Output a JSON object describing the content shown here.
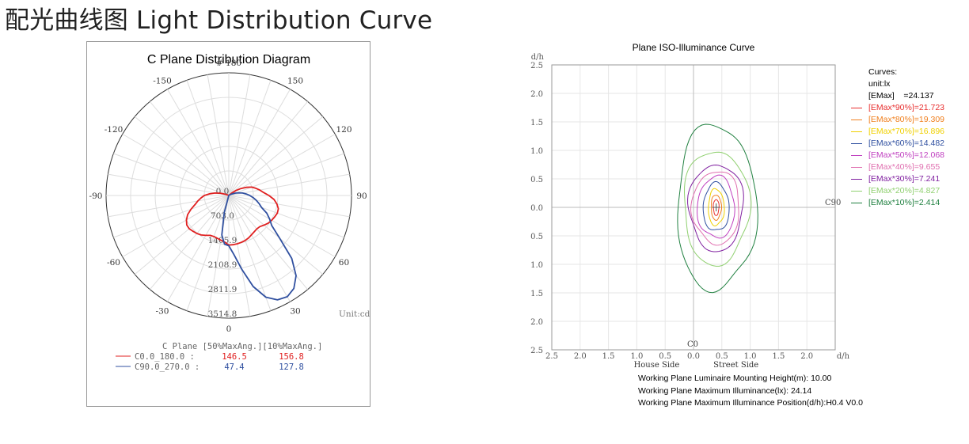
{
  "page_title": "配光曲线图 Light Distribution Curve",
  "chart_data": [
    {
      "type": "polar",
      "title": "C Plane Distribution Diagram",
      "unit_label": "Unit:cd",
      "angle_labels": [
        "# 180",
        "150",
        "120",
        "90",
        "60",
        "30",
        "0",
        "-30",
        "-60",
        "-90",
        "-120",
        "-150"
      ],
      "angle_values": [
        180,
        150,
        120,
        90,
        60,
        30,
        0,
        -30,
        -60,
        -90,
        -120,
        -150
      ],
      "radial_ticks": [
        0.0,
        703.0,
        1405.9,
        2108.9,
        2811.9,
        3514.8
      ],
      "radial_tick_labels": [
        "0.0",
        "703.0",
        "1405.9",
        "2108.9",
        "2811.9",
        "3514.8"
      ],
      "r_max": 3514.8,
      "table_header": "C Plane  [50%MaxAng.][10%MaxAng.]",
      "series": [
        {
          "name": "C0.0_180.0  :",
          "color": "#e02020",
          "half_max_angle": "146.5",
          "tenth_max_angle": "156.8",
          "angles": [
            0,
            5,
            10,
            15,
            20,
            25,
            30,
            35,
            40,
            45,
            50,
            55,
            60,
            65,
            70,
            75,
            80,
            85,
            90,
            95,
            100,
            105,
            110,
            115,
            120,
            125,
            130,
            135,
            140,
            145,
            150,
            155,
            160,
            165,
            170,
            175,
            180,
            185,
            190,
            195,
            200,
            205,
            210,
            215,
            220,
            225,
            230,
            235,
            240,
            245,
            250,
            255,
            260,
            265,
            270,
            275,
            280,
            285,
            290,
            295,
            300,
            305,
            310,
            315,
            320,
            325,
            330,
            335,
            340,
            345,
            350,
            355
          ],
          "r": [
            1420,
            1415,
            1405,
            1390,
            1370,
            1340,
            1300,
            1270,
            1250,
            1260,
            1320,
            1380,
            1420,
            1450,
            1480,
            1470,
            1400,
            1300,
            1150,
            1000,
            900,
            800,
            700,
            550,
            400,
            250,
            100,
            30,
            0,
            0,
            0,
            0,
            0,
            0,
            0,
            0,
            0,
            0,
            0,
            0,
            0,
            0,
            0,
            0,
            0,
            0,
            0,
            0,
            0,
            30,
            100,
            250,
            400,
            550,
            700,
            800,
            900,
            1000,
            1150,
            1300,
            1400,
            1470,
            1480,
            1450,
            1420,
            1380,
            1320,
            1260,
            1250,
            1270,
            1300,
            1340
          ]
        },
        {
          "name": "C90.0_270.0 :",
          "color": "#3050a0",
          "half_max_angle": "47.4",
          "tenth_max_angle": "127.8",
          "angles": [
            0,
            5,
            10,
            15,
            20,
            25,
            30,
            35,
            40,
            45,
            50,
            55,
            60,
            65,
            70,
            75,
            80,
            85,
            90,
            95,
            100,
            105,
            110,
            115,
            120,
            125,
            130,
            135,
            140,
            145,
            150,
            155,
            160,
            165,
            170,
            175,
            180,
            185,
            190,
            195,
            200,
            205,
            210,
            215,
            220,
            225,
            230,
            235,
            240,
            245,
            250,
            255,
            260,
            265,
            270,
            275,
            280,
            285,
            290,
            295,
            300,
            305,
            310,
            315,
            320,
            325,
            330,
            335,
            340,
            345,
            350,
            355
          ],
          "r": [
            1440,
            1700,
            2150,
            2700,
            3100,
            3300,
            3350,
            3250,
            3000,
            2550,
            1900,
            1500,
            1350,
            1200,
            1000,
            900,
            800,
            700,
            600,
            500,
            400,
            300,
            200,
            100,
            30,
            0,
            0,
            0,
            0,
            0,
            0,
            0,
            0,
            0,
            0,
            0,
            0,
            0,
            0,
            0,
            0,
            0,
            0,
            0,
            0,
            0,
            0,
            0,
            0,
            0,
            0,
            0,
            0,
            0,
            0,
            0,
            0,
            0,
            0,
            0,
            0,
            0,
            0,
            0,
            0,
            0,
            0,
            0,
            0,
            500,
            1150,
            1400
          ]
        }
      ]
    },
    {
      "type": "contour",
      "title": "Plane ISO-Illuminance Curve",
      "y_axis_unit": "d/h",
      "x_axis_unit": "d/h",
      "y_tick_labels": [
        "2.5",
        "2.0",
        "1.5",
        "1.0",
        "0.5",
        "0.0",
        "0.5",
        "1.0",
        "1.5",
        "2.0",
        "2.5"
      ],
      "x_tick_labels": [
        "2.5",
        "2.0",
        "1.5",
        "1.0",
        "0.5",
        "0.0",
        "0.5",
        "1.0",
        "1.5",
        "2.0"
      ],
      "x_range": [
        -2.5,
        2.5
      ],
      "y_range": [
        -2.5,
        2.5
      ],
      "plane_label_right": "C90",
      "plane_label_bottom": "C0",
      "side_label_left": "House Side",
      "side_label_right": "Street Side",
      "legend_title": "Curves:",
      "legend_unit": "unit:lx",
      "legend_emax_label": "[EMax]",
      "legend_emax_value": "=24.137",
      "center": [
        0.4,
        0.0
      ],
      "levels": [
        {
          "label": "[EMax*90%]=21.723",
          "color": "#e83030",
          "rx": 0.05,
          "ry": 0.14
        },
        {
          "label": "[EMax*80%]=19.309",
          "color": "#f08020",
          "rx": 0.09,
          "ry": 0.22
        },
        {
          "label": "[EMax*70%]=16.896",
          "color": "#f0d000",
          "rx": 0.14,
          "ry": 0.32
        },
        {
          "label": "[EMax*60%]=14.482",
          "color": "#3050a0",
          "rx": 0.23,
          "ry": 0.42
        },
        {
          "label": "[EMax*50%]=12.068",
          "color": "#c040c0",
          "rx": 0.33,
          "ry": 0.54
        },
        {
          "label": "[EMax*40%]=9.655",
          "color": "#e070b0",
          "rx": 0.42,
          "ry": 0.64
        },
        {
          "label": "[EMax*30%]=7.241",
          "color": "#8020a0",
          "rx": 0.48,
          "ry": 0.76
        },
        {
          "label": "[EMax*20%]=4.827",
          "color": "#90d070",
          "rx": 0.58,
          "ry": 1.0
        },
        {
          "label": "[EMax*10%]=2.414",
          "color": "#208040",
          "rx": 0.7,
          "ry": 1.45
        }
      ]
    }
  ],
  "info": {
    "mounting_height": "Working Plane Luminaire Mounting Height(m): 10.00",
    "max_illuminance": "Working Plane Maximum Illuminance(lx): 24.14",
    "max_position": "Working Plane Maximum Illuminance Position(d/h):H0.4 V0.0"
  }
}
